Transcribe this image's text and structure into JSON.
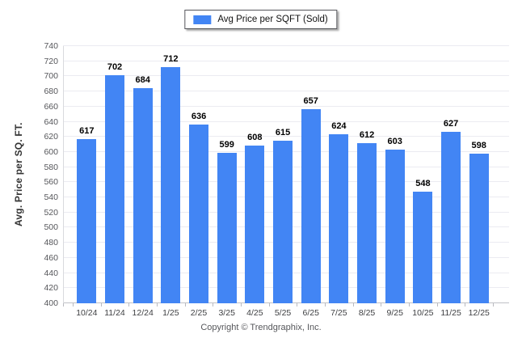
{
  "legend": {
    "label": "Avg Price per SQFT (Sold)",
    "swatch_color": "#4285f4"
  },
  "footer": {
    "copyright": "Copyright © Trendgraphix, Inc."
  },
  "chart_data": {
    "type": "bar",
    "title": "",
    "series_name": "Avg Price per SQFT (Sold)",
    "categories": [
      "10/24",
      "11/24",
      "12/24",
      "1/25",
      "2/25",
      "3/25",
      "4/25",
      "5/25",
      "6/25",
      "7/25",
      "8/25",
      "9/25",
      "10/25",
      "11/25",
      "12/25"
    ],
    "values": [
      617,
      702,
      684,
      712,
      636,
      599,
      608,
      615,
      657,
      624,
      612,
      603,
      548,
      627,
      598
    ],
    "xlabel": "",
    "ylabel": "Avg. Price per SQ. FT.",
    "ylim": [
      400,
      740
    ],
    "ytick_step": 20,
    "yticks": [
      740,
      720,
      700,
      680,
      660,
      640,
      620,
      600,
      580,
      560,
      540,
      520,
      500,
      480,
      460,
      440,
      420,
      400
    ],
    "grid": "horizontal",
    "legend_position": "top-center",
    "bar_color": "#4285f4",
    "value_labels": true
  }
}
